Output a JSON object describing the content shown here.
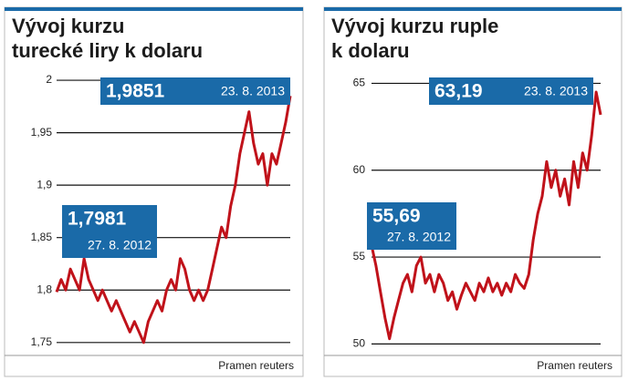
{
  "chart_data": [
    {
      "type": "line",
      "title": [
        "Vývoj kurzu",
        "turecké liry k dolaru"
      ],
      "source": "Pramen reuters",
      "x": [
        "27. 8. 2012",
        null,
        null,
        null,
        null,
        null,
        null,
        null,
        null,
        null,
        null,
        null,
        null,
        null,
        null,
        null,
        null,
        null,
        null,
        null,
        null,
        null,
        null,
        null,
        null,
        null,
        null,
        null,
        null,
        null,
        null,
        null,
        null,
        null,
        null,
        null,
        null,
        null,
        null,
        null,
        null,
        null,
        null,
        null,
        null,
        null,
        null,
        null,
        null,
        null,
        null,
        "23. 8. 2013"
      ],
      "values": [
        1.7981,
        1.81,
        1.8,
        1.82,
        1.81,
        1.8,
        1.83,
        1.81,
        1.8,
        1.79,
        1.8,
        1.79,
        1.78,
        1.79,
        1.78,
        1.77,
        1.76,
        1.77,
        1.76,
        1.75,
        1.77,
        1.78,
        1.79,
        1.78,
        1.8,
        1.81,
        1.8,
        1.83,
        1.82,
        1.8,
        1.79,
        1.8,
        1.79,
        1.8,
        1.82,
        1.84,
        1.86,
        1.85,
        1.88,
        1.9,
        1.93,
        1.95,
        1.97,
        1.94,
        1.92,
        1.93,
        1.9,
        1.93,
        1.92,
        1.94,
        1.96,
        1.9851
      ],
      "value_labels": [
        "1,7981",
        null,
        null,
        null,
        null,
        null,
        null,
        null,
        null,
        null,
        null,
        null,
        null,
        null,
        null,
        null,
        null,
        null,
        null,
        null,
        null,
        null,
        null,
        null,
        null,
        null,
        null,
        null,
        null,
        null,
        null,
        null,
        null,
        null,
        null,
        null,
        null,
        null,
        null,
        null,
        null,
        null,
        null,
        null,
        null,
        null,
        null,
        null,
        null,
        null,
        null,
        "1,9851"
      ],
      "color": "#c0121a",
      "ylim": [
        1.742,
        2.007
      ],
      "yticks": [
        {
          "value": 1.75,
          "label": "1,75"
        },
        {
          "value": 1.8,
          "label": "1,8"
        },
        {
          "value": 1.85,
          "label": "1,85"
        },
        {
          "value": 1.9,
          "label": "1,9"
        },
        {
          "value": 1.95,
          "label": "1,95"
        },
        2
      ],
      "grid": true
    },
    {
      "type": "line",
      "title": [
        "Vývoj kurzu ruple",
        "k dolaru"
      ],
      "source": "Pramen reuters",
      "x": [
        "27. 8. 2012",
        null,
        null,
        null,
        null,
        null,
        null,
        null,
        null,
        null,
        null,
        null,
        null,
        null,
        null,
        null,
        null,
        null,
        null,
        null,
        null,
        null,
        null,
        null,
        null,
        null,
        null,
        null,
        null,
        null,
        null,
        null,
        null,
        null,
        null,
        null,
        null,
        null,
        null,
        null,
        null,
        null,
        null,
        null,
        null,
        null,
        null,
        null,
        null,
        null,
        null,
        "23. 8. 2013"
      ],
      "values": [
        55.69,
        54.5,
        53,
        51.5,
        50.3,
        51.5,
        52.5,
        53.5,
        54,
        53,
        54.5,
        55,
        53.5,
        54,
        53,
        54,
        53.5,
        52.5,
        53,
        52,
        52.8,
        53.5,
        53,
        52.5,
        53.5,
        53,
        53.8,
        53,
        53.5,
        52.8,
        53.5,
        53,
        54,
        53.5,
        53.2,
        54,
        56,
        57.5,
        58.5,
        60.5,
        59,
        60,
        58.5,
        59.5,
        58,
        60.5,
        59,
        61,
        60,
        62,
        64.5,
        63.19
      ],
      "value_labels": [
        "55,69",
        null,
        null,
        null,
        null,
        null,
        null,
        null,
        null,
        null,
        null,
        null,
        null,
        null,
        null,
        null,
        null,
        null,
        null,
        null,
        null,
        null,
        null,
        null,
        null,
        null,
        null,
        null,
        null,
        null,
        null,
        null,
        null,
        null,
        null,
        null,
        null,
        null,
        null,
        null,
        null,
        null,
        null,
        null,
        null,
        null,
        null,
        null,
        null,
        null,
        null,
        "63,19"
      ],
      "color": "#c0121a",
      "ylim": [
        49.6,
        65.6
      ],
      "yticks": [
        50,
        55,
        60,
        65
      ],
      "grid": true
    }
  ]
}
